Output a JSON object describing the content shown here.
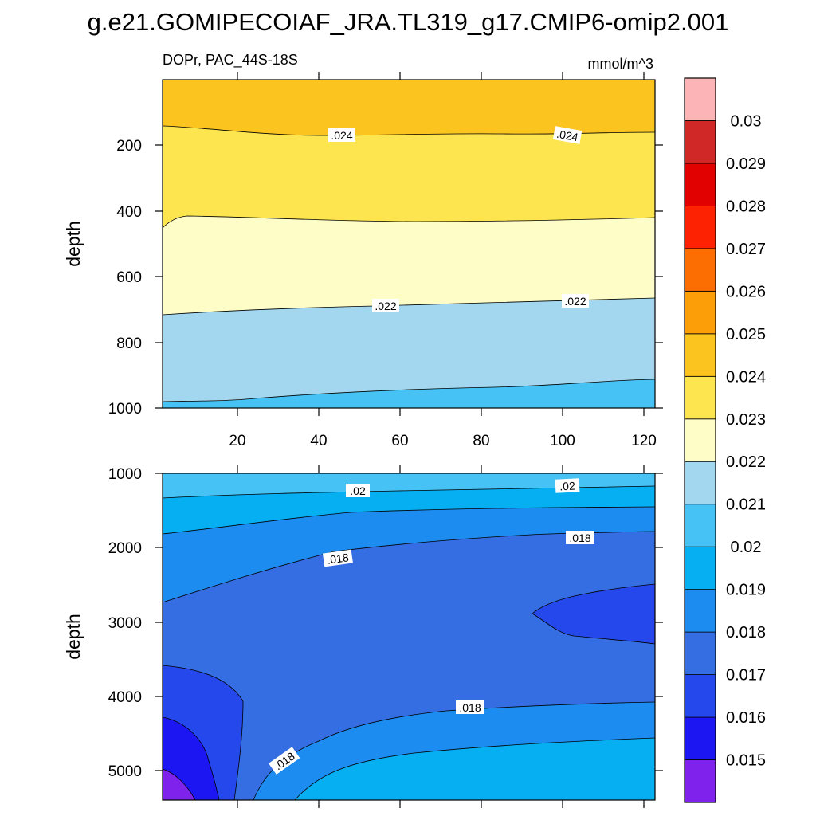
{
  "figure_title": "g.e21.GOMIPECOIAF_JRA.TL319_g17.CMIP6-omip2.001",
  "chart_data": [
    {
      "type": "contour",
      "panel": "upper",
      "left_string": "DOPr, PAC_44S-18S",
      "right_string": "mmol/m^3",
      "ylabel": "depth",
      "xlabel": "",
      "xlim": [
        1,
        123
      ],
      "ylim": [
        1000,
        25
      ],
      "x_ticks": [
        "20",
        "40",
        "60",
        "80",
        "100",
        "120"
      ],
      "y_ticks": [
        "200",
        "400",
        "600",
        "800",
        "1000"
      ],
      "bands": [
        {
          "label": "0.024-0.025",
          "color": "#fcc41f"
        },
        {
          "label": "0.023-0.024",
          "color": "#fce54e"
        },
        {
          "label": "0.022-0.023",
          "color": "#fefdc7"
        },
        {
          "label": "0.021-0.022",
          "color": "#a2d7ef"
        },
        {
          "label": "0.020-0.021",
          "color": "#47c2f4"
        }
      ],
      "contours": [
        {
          "level": 0.024,
          "depth_at_x": [
            [
              1,
              145
            ],
            [
              40,
              165
            ],
            [
              123,
              165
            ]
          ]
        },
        {
          "level": 0.023,
          "depth_at_x": [
            [
              1,
              455
            ],
            [
              15,
              415
            ],
            [
              123,
              420
            ]
          ]
        },
        {
          "level": 0.022,
          "depth_at_x": [
            [
              1,
              710
            ],
            [
              60,
              685
            ],
            [
              123,
              665
            ]
          ]
        },
        {
          "level": 0.021,
          "depth_at_x": [
            [
              1,
              980
            ],
            [
              60,
              945
            ],
            [
              123,
              915
            ]
          ]
        }
      ],
      "contour_labels": [
        ".024",
        ".024",
        ".022",
        ".022"
      ]
    },
    {
      "type": "contour",
      "panel": "lower",
      "ylabel": "depth",
      "xlabel": "",
      "xlim": [
        1,
        123
      ],
      "ylim": [
        5400,
        1000
      ],
      "y_ticks": [
        "1000",
        "2000",
        "3000",
        "4000",
        "5000"
      ],
      "bands": [
        {
          "label": "0.020-0.021",
          "color": "#47c2f4"
        },
        {
          "label": "0.019-0.020",
          "color": "#05aff2"
        },
        {
          "label": "0.018-0.019",
          "color": "#1c8cf0"
        },
        {
          "label": "0.017-0.018",
          "color": "#346ee2"
        },
        {
          "label": "0.016-0.017",
          "color": "#2548ec"
        },
        {
          "label": "0.015-0.016",
          "color": "#1c16f2"
        },
        {
          "label": "<0.015",
          "color": "#7f22ec"
        }
      ],
      "contours": [
        {
          "level": 0.02,
          "depth_at_x": [
            [
              1,
              1300
            ],
            [
              123,
              1170
            ]
          ]
        },
        {
          "level": 0.019,
          "depth_at_x": [
            [
              1,
              1820
            ],
            [
              40,
              1600
            ],
            [
              123,
              1470
            ]
          ]
        },
        {
          "level": 0.018,
          "depth_at_x": [
            [
              1,
              2750
            ],
            [
              60,
              1950
            ],
            [
              123,
              1770
            ]
          ]
        },
        {
          "level": 0.018,
          "depth_at_x": [
            [
              25,
              5400
            ],
            [
              60,
              4200
            ],
            [
              123,
              4050
            ]
          ]
        }
      ],
      "contour_labels": [
        ".02",
        ".02",
        ".018",
        ".018",
        ".018",
        ".018"
      ]
    }
  ],
  "colorbar": {
    "colors": [
      "#7f22ec",
      "#1c16f2",
      "#2548ec",
      "#346ee2",
      "#1c8cf0",
      "#05aff2",
      "#47c2f4",
      "#a2d7ef",
      "#fefdc7",
      "#fce54e",
      "#fcc41f",
      "#fb9e07",
      "#fc6d02",
      "#fc2202",
      "#e20101",
      "#d02727",
      "#fdb4b6"
    ],
    "labels": [
      "0.015",
      "0.016",
      "0.017",
      "0.018",
      "0.019",
      "0.02",
      "0.021",
      "0.022",
      "0.023",
      "0.024",
      "0.025",
      "0.026",
      "0.027",
      "0.028",
      "0.029",
      "0.03"
    ]
  }
}
